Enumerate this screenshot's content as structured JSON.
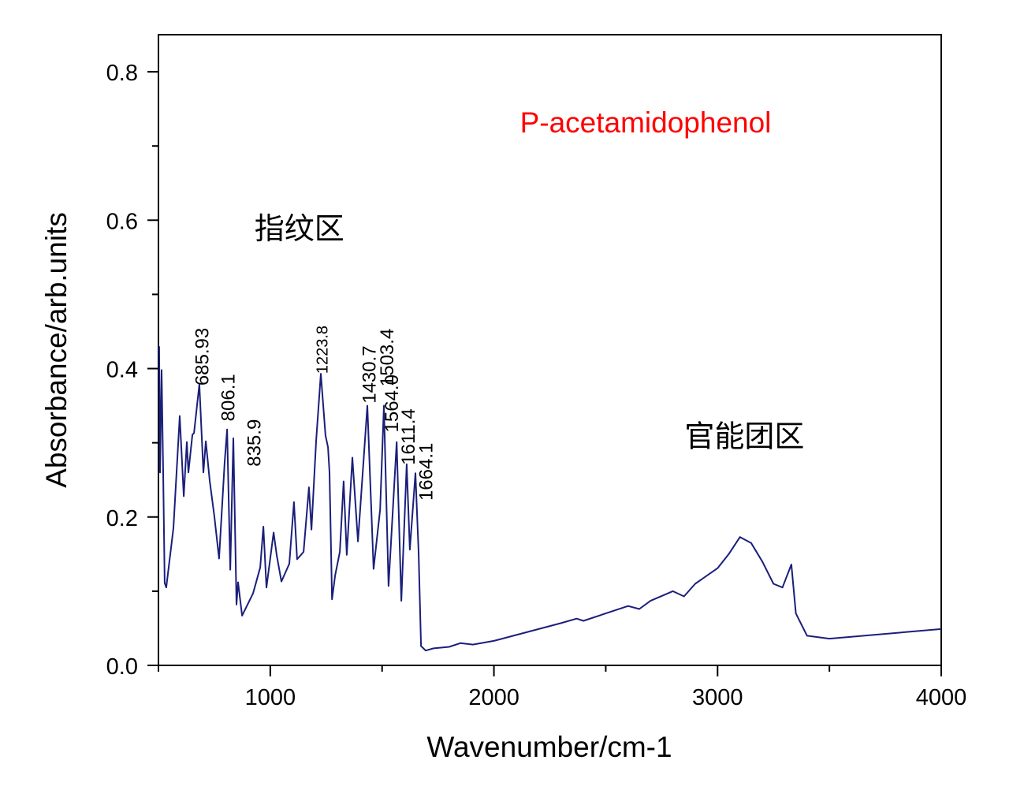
{
  "chart_data": {
    "type": "line",
    "title": "P-acetamidophenol",
    "xlabel": "Wavenumber/cm-1",
    "ylabel": "Absorbance/arb.units",
    "xlim": [
      500,
      4000
    ],
    "ylim": [
      0,
      0.85
    ],
    "xticks": [
      1000,
      2000,
      3000,
      4000
    ],
    "xtick_labels": [
      "1000",
      "2000",
      "3000",
      "4000"
    ],
    "xminor": [
      500,
      1500,
      2500,
      3500
    ],
    "yticks": [
      0,
      0.2,
      0.4,
      0.6,
      0.8
    ],
    "ytick_labels": [
      "0.0",
      "0.2",
      "0.4",
      "0.6",
      "0.8"
    ],
    "yminor": [
      0.1,
      0.3,
      0.5,
      0.7
    ],
    "grid": false,
    "series": [
      {
        "name": "P-acetamidophenol",
        "color": "#1a1f7a",
        "x": [
          503,
          507,
          514,
          521,
          528,
          535,
          567,
          595,
          613,
          627,
          634,
          652,
          659,
          683,
          701,
          712,
          729,
          750,
          771,
          796,
          807,
          821,
          835,
          849,
          856,
          874,
          923,
          955,
          969,
          983,
          1015,
          1029,
          1050,
          1085,
          1106,
          1120,
          1149,
          1173,
          1184,
          1205,
          1226,
          1247,
          1258,
          1265,
          1276,
          1290,
          1311,
          1328,
          1342,
          1367,
          1392,
          1434,
          1462,
          1491,
          1508,
          1529,
          1565,
          1586,
          1610,
          1624,
          1649,
          1663,
          1674,
          1695,
          1730,
          1800,
          1850,
          1906,
          2000,
          2300,
          2370,
          2400,
          2500,
          2600,
          2650,
          2700,
          2800,
          2850,
          2900,
          3000,
          3050,
          3100,
          3150,
          3200,
          3250,
          3290,
          3330,
          3350,
          3400,
          3500,
          4000
        ],
        "y": [
          0.43,
          0.26,
          0.398,
          0.26,
          0.111,
          0.105,
          0.185,
          0.336,
          0.228,
          0.301,
          0.26,
          0.311,
          0.313,
          0.379,
          0.26,
          0.302,
          0.249,
          0.201,
          0.144,
          0.274,
          0.318,
          0.129,
          0.306,
          0.082,
          0.112,
          0.067,
          0.097,
          0.132,
          0.187,
          0.105,
          0.179,
          0.148,
          0.113,
          0.137,
          0.22,
          0.143,
          0.153,
          0.24,
          0.183,
          0.302,
          0.393,
          0.31,
          0.294,
          0.26,
          0.089,
          0.121,
          0.153,
          0.248,
          0.149,
          0.28,
          0.167,
          0.35,
          0.13,
          0.21,
          0.35,
          0.107,
          0.301,
          0.087,
          0.271,
          0.156,
          0.259,
          0.153,
          0.026,
          0.02,
          0.023,
          0.025,
          0.03,
          0.028,
          0.033,
          0.057,
          0.063,
          0.06,
          0.07,
          0.08,
          0.076,
          0.087,
          0.1,
          0.093,
          0.11,
          0.131,
          0.15,
          0.173,
          0.165,
          0.14,
          0.11,
          0.105,
          0.136,
          0.07,
          0.04,
          0.036,
          0.049
        ]
      }
    ],
    "peak_labels": [
      {
        "text": "685.93",
        "x": 695,
        "y": 0.377,
        "small": false
      },
      {
        "text": "806.1",
        "x": 812,
        "y": 0.329,
        "small": false
      },
      {
        "text": "835.9",
        "x": 928,
        "y": 0.268,
        "small": false
      },
      {
        "text": "1223.8",
        "x": 1228,
        "y": 0.393,
        "small": true
      },
      {
        "text": "1430.7",
        "x": 1442,
        "y": 0.353,
        "small": false
      },
      {
        "text": "1503.4",
        "x": 1522,
        "y": 0.376,
        "small": false
      },
      {
        "text": "1564.0",
        "x": 1543,
        "y": 0.314,
        "small": false
      },
      {
        "text": "1611.4",
        "x": 1618,
        "y": 0.27,
        "small": false
      },
      {
        "text": "1664.1",
        "x": 1696,
        "y": 0.222,
        "small": false
      }
    ],
    "annotations": [
      {
        "text": "指纹区",
        "x": 1130,
        "y": 0.575
      },
      {
        "text": "官能团区",
        "x": 3120,
        "y": 0.295
      }
    ],
    "title_color": "#ff0000"
  }
}
